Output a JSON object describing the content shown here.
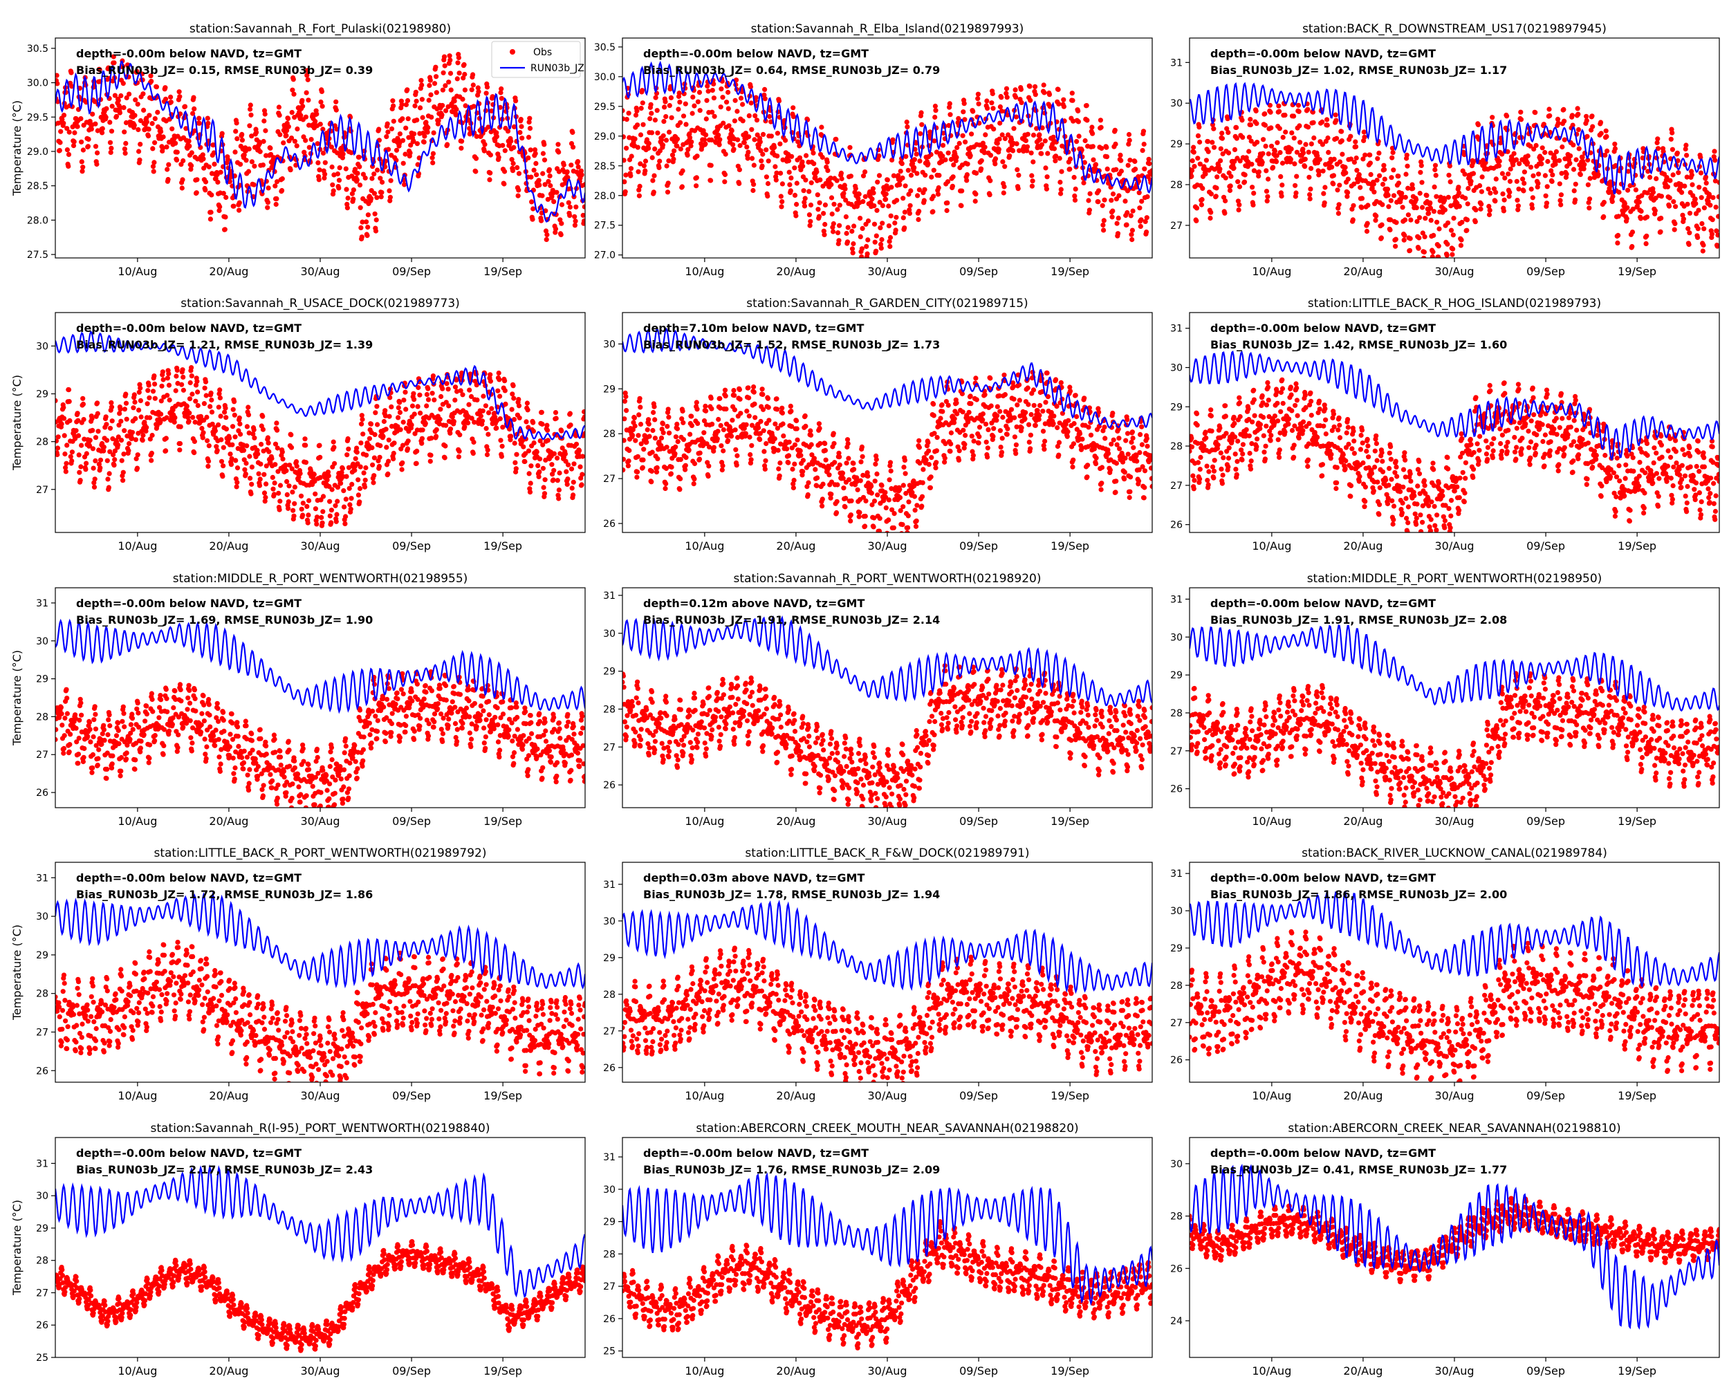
{
  "figure": {
    "ylabel": "Temperature ($^\\circ$C)",
    "xtick_labels": [
      "10/Aug",
      "20/Aug",
      "30/Aug",
      "09/Sep",
      "19/Sep"
    ],
    "legend": [
      {
        "label": "Obs",
        "kind": "marker",
        "color": "#ff0000"
      },
      {
        "label": "RUN03b_JZ",
        "kind": "line",
        "color": "#0000ff"
      }
    ],
    "colors": {
      "obs": "#ff0000",
      "model": "#0000ff"
    }
  },
  "chart_data": [
    {
      "type": "line",
      "title": "station:Savannah_R_Fort_Pulaski(02198980)",
      "annotation_line1": "depth=-0.00m below NAVD, tz=GMT",
      "annotation_line2": "Bias_RUN03b_JZ=  0.15, RMSE_RUN03b_JZ=  0.39",
      "ylim": [
        27.45,
        30.65
      ],
      "yticks": [
        27.5,
        28.0,
        28.5,
        29.0,
        29.5,
        30.0,
        30.5
      ],
      "ytick_labels": [
        "27.5",
        "28.0",
        "28.5",
        "29.0",
        "29.5",
        "30.0",
        "30.5"
      ],
      "xlim": [
        "2023-08-01",
        "2023-09-28"
      ],
      "obs_nodes": [
        29.4,
        29.5,
        29.4,
        29.6,
        29.8,
        29.6,
        29.5,
        29.3,
        29.2,
        29.1,
        28.7,
        28.5,
        28.9,
        29.0,
        28.7,
        29.3,
        29.5,
        29.2,
        29.0,
        28.8,
        28.2,
        28.8,
        29.2,
        29.3,
        29.5,
        29.8,
        29.8,
        29.4,
        29.3,
        29.2,
        29.0,
        28.5,
        28.3,
        28.6,
        28.5
      ],
      "obs_spread": 0.7,
      "model_nodes": [
        29.7,
        29.9,
        29.8,
        30.0,
        30.2,
        30.0,
        29.7,
        29.5,
        29.3,
        29.2,
        28.6,
        28.3,
        28.6,
        29.0,
        28.8,
        29.1,
        29.3,
        29.2,
        29.0,
        28.8,
        28.5,
        29.0,
        29.3,
        29.4,
        29.5,
        29.6,
        29.5,
        28.3,
        28.0,
        28.5,
        28.4
      ],
      "model_amp": 0.25
    },
    {
      "type": "line",
      "title": "station:Savannah_R_Elba_Island(0219897993)",
      "annotation_line1": "depth=-0.00m below NAVD, tz=GMT",
      "annotation_line2": "Bias_RUN03b_JZ=  0.64, RMSE_RUN03b_JZ=  0.79",
      "ylim": [
        26.95,
        30.65
      ],
      "yticks": [
        27.0,
        27.5,
        28.0,
        28.5,
        29.0,
        29.5,
        30.0,
        30.5
      ],
      "ytick_labels": [
        "27.0",
        "27.5",
        "28.0",
        "28.5",
        "29.0",
        "29.5",
        "30.0",
        "30.5"
      ],
      "xlim": [
        "2023-08-01",
        "2023-09-28"
      ],
      "obs_nodes": [
        28.9,
        28.9,
        29.0,
        29.1,
        29.2,
        29.1,
        28.9,
        28.6,
        28.3,
        28.0,
        27.7,
        27.9,
        28.4,
        28.6,
        28.7,
        28.9,
        29.0,
        29.1,
        29.0,
        28.8,
        28.3,
        28.1,
        28.2
      ],
      "obs_spread": 0.9,
      "model_nodes": [
        29.8,
        30.0,
        29.9,
        30.0,
        29.6,
        29.2,
        28.9,
        28.6,
        28.8,
        28.9,
        29.1,
        29.3,
        29.4,
        29.3,
        28.4,
        28.2,
        28.2
      ],
      "model_amp": 0.25
    },
    {
      "type": "line",
      "title": "station:BACK_R_DOWNSTREAM_US17(0219897945)",
      "annotation_line1": "depth=-0.00m below NAVD, tz=GMT",
      "annotation_line2": "Bias_RUN03b_JZ=  1.02, RMSE_RUN03b_JZ=  1.17",
      "ylim": [
        26.2,
        31.6
      ],
      "yticks": [
        27,
        28,
        29,
        30,
        31
      ],
      "ytick_labels": [
        "27",
        "28",
        "29",
        "30",
        "31"
      ],
      "xlim": [
        "2023-08-01",
        "2023-09-28"
      ],
      "obs_nodes": [
        28.2,
        28.4,
        28.6,
        28.8,
        29.0,
        28.9,
        28.6,
        28.2,
        27.8,
        27.5,
        27.2,
        27.3,
        28.3,
        28.5,
        28.6,
        28.7,
        28.8,
        28.6,
        27.6,
        27.8,
        28.2,
        27.5,
        27.6
      ],
      "obs_spread": 1.2,
      "model_nodes": [
        29.8,
        30.0,
        30.2,
        30.1,
        30.0,
        29.6,
        29.0,
        28.7,
        28.9,
        29.2,
        29.3,
        29.2,
        28.2,
        28.6,
        28.5,
        28.4
      ],
      "model_amp": 0.45
    },
    {
      "type": "line",
      "title": "station:Savannah_R_USACE_DOCK(021989773)",
      "annotation_line1": "depth=-0.00m below NAVD, tz=GMT",
      "annotation_line2": "Bias_RUN03b_JZ=  1.21, RMSE_RUN03b_JZ=  1.39",
      "ylim": [
        26.1,
        30.7
      ],
      "yticks": [
        27,
        28,
        29,
        30
      ],
      "ytick_labels": [
        "27",
        "28",
        "29",
        "30"
      ],
      "xlim": [
        "2023-08-01",
        "2023-09-28"
      ],
      "obs_nodes": [
        28.4,
        28.0,
        27.9,
        28.3,
        28.7,
        28.8,
        28.3,
        27.9,
        27.6,
        27.2,
        27.0,
        27.1,
        28.0,
        28.3,
        28.5,
        28.6,
        28.7,
        28.6,
        27.8,
        27.7,
        27.7
      ],
      "obs_spread": 0.9,
      "model_nodes": [
        30.0,
        30.1,
        30.0,
        30.0,
        29.8,
        29.6,
        29.0,
        28.6,
        28.8,
        29.0,
        29.2,
        29.3,
        29.4,
        28.2,
        28.1,
        28.2
      ],
      "model_amp": 0.2
    },
    {
      "type": "line",
      "title": "station:Savannah_R_GARDEN_CITY(021989715)",
      "annotation_line1": "depth=7.10m below NAVD, tz=GMT",
      "annotation_line2": "Bias_RUN03b_JZ=  1.52, RMSE_RUN03b_JZ=  1.73",
      "ylim": [
        25.8,
        30.7
      ],
      "yticks": [
        26,
        27,
        28,
        29,
        30
      ],
      "ytick_labels": [
        "26",
        "27",
        "28",
        "29",
        "30"
      ],
      "xlim": [
        "2023-08-01",
        "2023-09-28"
      ],
      "obs_nodes": [
        28.0,
        27.8,
        27.6,
        27.9,
        28.2,
        28.3,
        27.9,
        27.5,
        27.1,
        26.8,
        26.4,
        26.6,
        28.2,
        28.3,
        28.4,
        28.5,
        28.6,
        28.2,
        27.7,
        27.5,
        27.4
      ],
      "obs_spread": 0.9,
      "model_nodes": [
        30.0,
        30.1,
        30.0,
        29.9,
        29.6,
        29.0,
        28.6,
        28.9,
        29.1,
        29.0,
        29.4,
        28.6,
        28.2,
        28.3
      ],
      "model_amp": 0.25
    },
    {
      "type": "line",
      "title": "station:LITTLE_BACK_R_HOG_ISLAND(021989793)",
      "annotation_line1": "depth=-0.00m below NAVD, tz=GMT",
      "annotation_line2": "Bias_RUN03b_JZ=  1.42, RMSE_RUN03b_JZ=  1.60",
      "ylim": [
        25.8,
        31.4
      ],
      "yticks": [
        26,
        27,
        28,
        29,
        30,
        31
      ],
      "ytick_labels": [
        "26",
        "27",
        "28",
        "29",
        "30",
        "31"
      ],
      "xlim": [
        "2023-08-01",
        "2023-09-28"
      ],
      "obs_nodes": [
        27.8,
        27.9,
        28.2,
        28.6,
        28.8,
        28.5,
        28.0,
        27.6,
        27.2,
        26.8,
        26.5,
        26.8,
        28.4,
        28.6,
        28.5,
        28.4,
        28.3,
        27.8,
        27.0,
        27.4,
        27.6,
        27.2,
        27.1
      ],
      "obs_spread": 1.0,
      "model_nodes": [
        29.9,
        30.0,
        30.1,
        30.0,
        29.9,
        29.5,
        28.8,
        28.4,
        28.6,
        28.9,
        29.0,
        28.9,
        28.0,
        28.5,
        28.3,
        28.4
      ],
      "model_amp": 0.4
    },
    {
      "type": "line",
      "title": "station:MIDDLE_R_PORT_WENTWORTH(02198955)",
      "annotation_line1": "depth=-0.00m below NAVD, tz=GMT",
      "annotation_line2": "Bias_RUN03b_JZ=  1.69, RMSE_RUN03b_JZ=  1.90",
      "ylim": [
        25.6,
        31.4
      ],
      "yticks": [
        26,
        27,
        28,
        29,
        30,
        31
      ],
      "ytick_labels": [
        "26",
        "27",
        "28",
        "29",
        "30",
        "31"
      ],
      "xlim": [
        "2023-08-01",
        "2023-09-28"
      ],
      "obs_nodes": [
        28.0,
        27.5,
        27.2,
        27.5,
        27.9,
        28.1,
        27.6,
        27.1,
        26.7,
        26.4,
        26.2,
        26.5,
        28.1,
        28.2,
        28.3,
        28.2,
        28.1,
        27.8,
        27.3,
        27.2,
        27.2
      ],
      "obs_spread": 0.9,
      "model_nodes": [
        30.2,
        29.9,
        30.0,
        30.2,
        29.9,
        29.3,
        28.5,
        28.6,
        28.9,
        29.1,
        29.3,
        28.9,
        28.3,
        28.5
      ],
      "model_amp": 0.5
    },
    {
      "type": "line",
      "title": "station:Savannah_R_PORT_WENTWORTH(02198920)",
      "annotation_line1": "depth=0.12m above NAVD, tz=GMT",
      "annotation_line2": "Bias_RUN03b_JZ=  1.91, RMSE_RUN03b_JZ=  2.14",
      "ylim": [
        25.4,
        31.2
      ],
      "yticks": [
        26,
        27,
        28,
        29,
        30,
        31
      ],
      "ytick_labels": [
        "26",
        "27",
        "28",
        "29",
        "30",
        "31"
      ],
      "xlim": [
        "2023-08-01",
        "2023-09-28"
      ],
      "obs_nodes": [
        28.0,
        27.6,
        27.3,
        27.6,
        28.0,
        28.0,
        27.4,
        26.9,
        26.5,
        26.3,
        26.0,
        26.3,
        28.2,
        28.2,
        28.1,
        28.2,
        28.1,
        27.6,
        27.2,
        27.3,
        27.4
      ],
      "obs_spread": 0.9,
      "model_nodes": [
        30.0,
        29.8,
        29.9,
        30.1,
        29.9,
        29.3,
        28.5,
        28.7,
        29.1,
        29.2,
        29.2,
        28.8,
        28.2,
        28.5
      ],
      "model_amp": 0.5
    },
    {
      "type": "line",
      "title": "station:MIDDLE_R_PORT_WENTWORTH(02198950)",
      "annotation_line1": "depth=-0.00m below NAVD, tz=GMT",
      "annotation_line2": "Bias_RUN03b_JZ=  1.91, RMSE_RUN03b_JZ=  2.08",
      "ylim": [
        25.5,
        31.3
      ],
      "yticks": [
        26,
        27,
        28,
        29,
        30,
        31
      ],
      "ytick_labels": [
        "26",
        "27",
        "28",
        "29",
        "30",
        "31"
      ],
      "xlim": [
        "2023-08-01",
        "2023-09-28"
      ],
      "obs_nodes": [
        27.8,
        27.4,
        27.1,
        27.4,
        27.8,
        27.9,
        27.3,
        26.8,
        26.4,
        26.2,
        26.0,
        26.4,
        28.1,
        28.1,
        28.0,
        28.0,
        28.0,
        27.4,
        27.0,
        27.0,
        27.1
      ],
      "obs_spread": 0.9,
      "model_nodes": [
        29.9,
        29.7,
        29.8,
        30.0,
        29.8,
        29.2,
        28.4,
        28.8,
        29.0,
        29.2,
        29.2,
        28.7,
        28.2,
        28.4
      ],
      "model_amp": 0.5
    },
    {
      "type": "line",
      "title": "station:LITTLE_BACK_R_PORT_WENTWORTH(021989792)",
      "annotation_line1": "depth=-0.00m below NAVD, tz=GMT",
      "annotation_line2": "Bias_RUN03b_JZ=  1.72, RMSE_RUN03b_JZ=  1.86",
      "ylim": [
        25.7,
        31.4
      ],
      "yticks": [
        26,
        27,
        28,
        29,
        30,
        31
      ],
      "ytick_labels": [
        "26",
        "27",
        "28",
        "29",
        "30",
        "31"
      ],
      "xlim": [
        "2023-08-01",
        "2023-09-28"
      ],
      "obs_nodes": [
        27.5,
        27.3,
        27.4,
        27.8,
        28.3,
        28.4,
        27.8,
        27.3,
        26.9,
        26.6,
        26.3,
        26.5,
        27.8,
        28.0,
        27.9,
        27.9,
        27.8,
        27.4,
        26.9,
        27.0,
        27.0
      ],
      "obs_spread": 1.0,
      "model_nodes": [
        30.0,
        29.8,
        30.0,
        30.2,
        30.0,
        29.4,
        28.6,
        28.7,
        29.0,
        29.2,
        29.3,
        28.8,
        28.3,
        28.5
      ],
      "model_amp": 0.55
    },
    {
      "type": "line",
      "title": "station:LITTLE_BACK_R_F&W_DOCK(021989791)",
      "annotation_line1": "depth=0.03m above NAVD, tz=GMT",
      "annotation_line2": "Bias_RUN03b_JZ=  1.78, RMSE_RUN03b_JZ=  1.94",
      "ylim": [
        25.6,
        31.6
      ],
      "yticks": [
        26,
        27,
        28,
        29,
        30,
        31
      ],
      "ytick_labels": [
        "26",
        "27",
        "28",
        "29",
        "30",
        "31"
      ],
      "xlim": [
        "2023-08-01",
        "2023-09-28"
      ],
      "obs_nodes": [
        27.4,
        27.2,
        27.4,
        27.9,
        28.3,
        28.2,
        27.6,
        27.1,
        26.8,
        26.5,
        26.3,
        26.6,
        27.8,
        28.0,
        27.8,
        27.8,
        27.7,
        27.2,
        26.8,
        27.0,
        27.0
      ],
      "obs_spread": 1.0,
      "model_nodes": [
        29.8,
        29.6,
        29.9,
        30.1,
        29.9,
        29.3,
        28.6,
        28.7,
        29.1,
        29.2,
        29.3,
        28.6,
        28.3,
        28.6
      ],
      "model_amp": 0.6
    },
    {
      "type": "line",
      "title": "station:BACK_RIVER_LUCKNOW_CANAL(021989784)",
      "annotation_line1": "depth=-0.00m below NAVD, tz=GMT",
      "annotation_line2": "Bias_RUN03b_JZ=  1.86, RMSE_RUN03b_JZ=  2.00",
      "ylim": [
        25.4,
        31.3
      ],
      "yticks": [
        26,
        27,
        28,
        29,
        30,
        31
      ],
      "ytick_labels": [
        "26",
        "27",
        "28",
        "29",
        "30",
        "31"
      ],
      "xlim": [
        "2023-08-01",
        "2023-09-28"
      ],
      "obs_nodes": [
        27.3,
        27.1,
        27.5,
        28.0,
        28.4,
        28.2,
        27.6,
        27.1,
        26.8,
        26.5,
        26.3,
        26.7,
        27.9,
        28.0,
        27.8,
        27.7,
        27.6,
        27.1,
        26.8,
        26.9,
        26.9
      ],
      "obs_spread": 1.1,
      "model_nodes": [
        29.8,
        29.6,
        29.9,
        30.1,
        29.9,
        29.3,
        28.6,
        28.8,
        29.2,
        29.3,
        29.4,
        28.5,
        28.2,
        28.5
      ],
      "model_amp": 0.6
    },
    {
      "type": "line",
      "title": "station:Savannah_R(I-95)_PORT_WENTWORTH(02198840)",
      "annotation_line1": "depth=-0.00m below NAVD, tz=GMT",
      "annotation_line2": "Bias_RUN03b_JZ=  2.17, RMSE_RUN03b_JZ=  2.43",
      "ylim": [
        25.0,
        31.8
      ],
      "yticks": [
        25,
        26,
        27,
        28,
        29,
        30,
        31
      ],
      "ytick_labels": [
        "25",
        "26",
        "27",
        "28",
        "29",
        "30",
        "31"
      ],
      "xlim": [
        "2023-08-01",
        "2023-09-28"
      ],
      "obs_nodes": [
        27.5,
        27.0,
        26.3,
        26.6,
        27.3,
        27.7,
        27.4,
        26.6,
        26.0,
        25.7,
        25.6,
        25.8,
        27.0,
        27.9,
        28.2,
        28.0,
        27.8,
        27.4,
        26.2,
        26.5,
        27.1,
        27.5
      ],
      "obs_spread": 0.4,
      "model_nodes": [
        29.8,
        29.5,
        29.6,
        30.1,
        30.3,
        30.1,
        29.9,
        29.2,
        28.6,
        28.8,
        29.5,
        29.7,
        29.8,
        29.9,
        27.2,
        27.7,
        28.3
      ],
      "model_amp": 0.75
    },
    {
      "type": "line",
      "title": "station:ABERCORN_CREEK_MOUTH_NEAR_SAVANNAH(02198820)",
      "annotation_line1": "depth=-0.00m below NAVD, tz=GMT",
      "annotation_line2": "Bias_RUN03b_JZ=  1.76, RMSE_RUN03b_JZ=  2.09",
      "ylim": [
        24.8,
        31.6
      ],
      "yticks": [
        25,
        26,
        27,
        28,
        29,
        30,
        31
      ],
      "ytick_labels": [
        "25",
        "26",
        "27",
        "28",
        "29",
        "30",
        "31"
      ],
      "xlim": [
        "2023-08-01",
        "2023-09-28"
      ],
      "obs_nodes": [
        27.0,
        26.4,
        26.2,
        26.8,
        27.5,
        27.6,
        27.0,
        26.4,
        26.0,
        25.8,
        26.0,
        27.2,
        28.3,
        27.9,
        27.5,
        27.4,
        27.2,
        26.8,
        26.7,
        26.9,
        27.2
      ],
      "obs_spread": 0.7,
      "model_nodes": [
        29.3,
        29.0,
        29.2,
        29.6,
        29.8,
        29.3,
        28.9,
        28.5,
        28.3,
        28.8,
        29.4,
        29.4,
        29.3,
        29.0,
        27.0,
        27.3,
        27.6
      ],
      "model_amp": 1.0
    },
    {
      "type": "line",
      "title": "station:ABERCORN_CREEK_NEAR_SAVANNAH(02198810)",
      "annotation_line1": "depth=-0.00m below NAVD, tz=GMT",
      "annotation_line2": "Bias_RUN03b_JZ=  0.41, RMSE_RUN03b_JZ=  1.77",
      "ylim": [
        22.6,
        31.0
      ],
      "yticks": [
        24,
        26,
        28,
        30
      ],
      "ytick_labels": [
        "24",
        "26",
        "28",
        "30"
      ],
      "xlim": [
        "2023-08-01",
        "2023-09-28"
      ],
      "obs_nodes": [
        27.4,
        26.8,
        27.2,
        27.7,
        27.8,
        27.5,
        26.9,
        26.4,
        26.1,
        26.2,
        27.0,
        27.7,
        28.1,
        28.0,
        27.7,
        27.5,
        27.3,
        27.0,
        26.8,
        26.9,
        27.0
      ],
      "obs_spread": 0.6,
      "model_nodes": [
        28.2,
        28.6,
        29.1,
        28.6,
        28.0,
        27.4,
        26.8,
        26.2,
        27.0,
        28.0,
        28.2,
        27.6,
        27.4,
        25.0,
        24.6,
        25.8,
        26.4
      ],
      "model_amp": 1.2
    }
  ]
}
